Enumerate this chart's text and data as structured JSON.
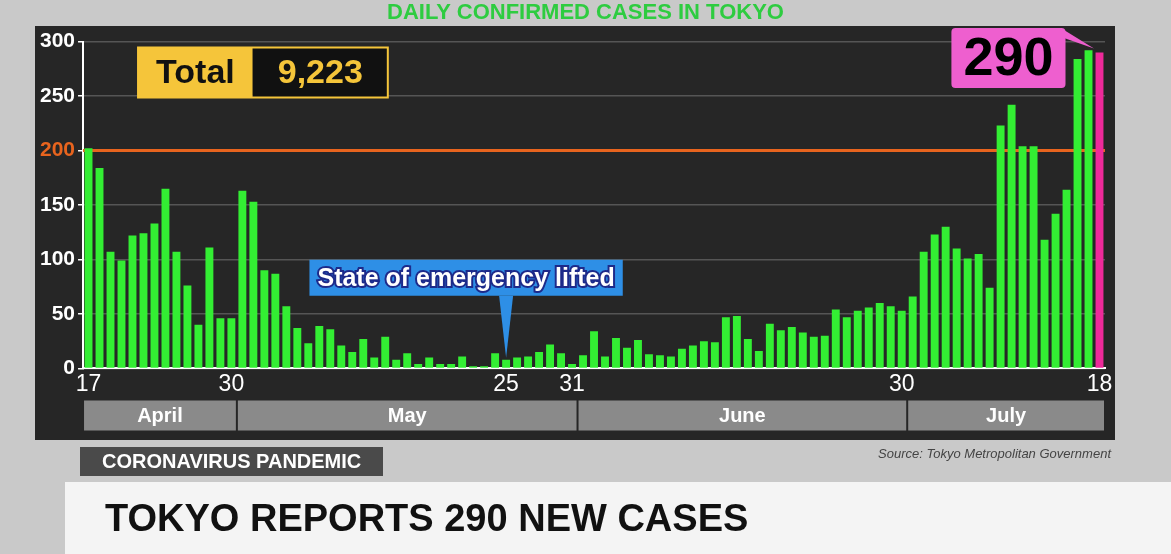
{
  "chart_data": {
    "type": "bar",
    "title": "DAILY CONFIRMED CASES IN TOKYO",
    "subtitle": "TOKYO REPORTS 290 NEW CASES",
    "categories": [
      "17",
      null,
      null,
      null,
      null,
      null,
      null,
      null,
      null,
      null,
      null,
      null,
      null,
      "30",
      null,
      null,
      null,
      null,
      null,
      null,
      null,
      null,
      null,
      null,
      null,
      null,
      null,
      null,
      null,
      null,
      null,
      null,
      null,
      null,
      null,
      null,
      null,
      null,
      "25",
      null,
      null,
      null,
      null,
      null,
      "31",
      null,
      null,
      null,
      null,
      null,
      null,
      null,
      null,
      null,
      null,
      null,
      null,
      null,
      null,
      null,
      null,
      null,
      null,
      null,
      null,
      null,
      null,
      null,
      null,
      null,
      null,
      null,
      null,
      null,
      "30",
      null,
      null,
      null,
      null,
      null,
      null,
      null,
      null,
      null,
      null,
      null,
      null,
      null,
      null,
      null,
      null,
      null,
      "18"
    ],
    "values": [
      202,
      184,
      107,
      99,
      122,
      124,
      133,
      165,
      107,
      76,
      40,
      111,
      46,
      46,
      163,
      153,
      90,
      87,
      57,
      37,
      23,
      39,
      36,
      21,
      15,
      27,
      10,
      29,
      8,
      14,
      4,
      10,
      4,
      4,
      11,
      2,
      2,
      14,
      8,
      10,
      11,
      15,
      22,
      14,
      4,
      12,
      34,
      11,
      28,
      19,
      26,
      13,
      12,
      11,
      18,
      21,
      25,
      24,
      47,
      48,
      27,
      16,
      41,
      35,
      38,
      33,
      29,
      30,
      54,
      47,
      53,
      56,
      60,
      57,
      53,
      66,
      107,
      123,
      130,
      110,
      101,
      105,
      74,
      223,
      242,
      204,
      204,
      118,
      142,
      164,
      284,
      292,
      290
    ],
    "colors": [
      "#33ee33",
      "#33ee33",
      "#33ee33",
      "#33ee33",
      "#33ee33",
      "#33ee33",
      "#33ee33",
      "#33ee33",
      "#33ee33",
      "#33ee33",
      "#33ee33",
      "#33ee33",
      "#33ee33",
      "#33ee33",
      "#33ee33",
      "#33ee33",
      "#33ee33",
      "#33ee33",
      "#33ee33",
      "#33ee33",
      "#33ee33",
      "#33ee33",
      "#33ee33",
      "#33ee33",
      "#33ee33",
      "#33ee33",
      "#33ee33",
      "#33ee33",
      "#33ee33",
      "#33ee33",
      "#33ee33",
      "#33ee33",
      "#33ee33",
      "#33ee33",
      "#33ee33",
      "#33ee33",
      "#33ee33",
      "#33ee33",
      "#33ee33",
      "#33ee33",
      "#33ee33",
      "#33ee33",
      "#33ee33",
      "#33ee33",
      "#33ee33",
      "#33ee33",
      "#33ee33",
      "#33ee33",
      "#33ee33",
      "#33ee33",
      "#33ee33",
      "#33ee33",
      "#33ee33",
      "#33ee33",
      "#33ee33",
      "#33ee33",
      "#33ee33",
      "#33ee33",
      "#33ee33",
      "#33ee33",
      "#33ee33",
      "#33ee33",
      "#33ee33",
      "#33ee33",
      "#33ee33",
      "#33ee33",
      "#33ee33",
      "#33ee33",
      "#33ee33",
      "#33ee33",
      "#33ee33",
      "#33ee33",
      "#33ee33",
      "#33ee33",
      "#33ee33",
      "#33ee33",
      "#33ee33",
      "#33ee33",
      "#33ee33",
      "#33ee33",
      "#33ee33",
      "#33ee33",
      "#33ee33",
      "#33ee33",
      "#33ee33",
      "#33ee33",
      "#33ee33",
      "#33ee33",
      "#33ee33",
      "#33ee33",
      "#33ee33",
      "#33ee33",
      "#ee2a9a"
    ],
    "ylim": [
      0,
      300
    ],
    "yticks": [
      0,
      50,
      100,
      150,
      200,
      250,
      300
    ],
    "grid": "y",
    "ref_lines": [
      {
        "axis": "y",
        "value": 200,
        "color": "#e8641e"
      }
    ],
    "annotations": [
      "Total 9,223",
      {
        "text": "State of emergency lifted",
        "x": "25",
        "y": 8
      },
      {
        "text": "290",
        "x": "18",
        "y": 290
      },
      "April",
      "May",
      "June",
      "July",
      "CORONAVIRUS PANDEMIC",
      "Source: Tokyo Metropolitan Government"
    ]
  }
}
